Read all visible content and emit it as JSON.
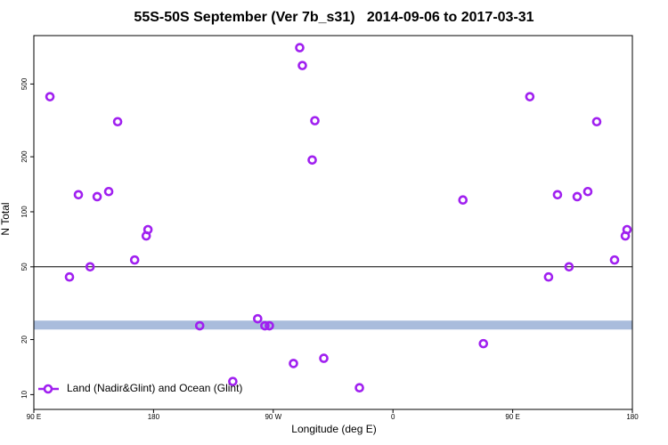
{
  "chart_data": {
    "type": "scatter",
    "title": "55S-50S September (Ver 7b_s31)   2014-09-06 to 2017-03-31",
    "x_label": "Longitude (deg E)",
    "y_label": "N Total",
    "log_y": true,
    "xlim": [
      90,
      540
    ],
    "ylim": [
      8.3,
      920
    ],
    "xticks": [
      {
        "value": 90,
        "label": "90 E"
      },
      180,
      {
        "value": 270,
        "label": "90 W"
      },
      {
        "value": 360,
        "label": "0"
      },
      {
        "value": 450,
        "label": "90 E"
      },
      {
        "value": 540,
        "label": "180"
      }
    ],
    "yticks": [
      10,
      20,
      50,
      100,
      200,
      500
    ],
    "reference_line": 50,
    "shaded_band": {
      "range": [
        22.7,
        25.4
      ],
      "color": "#a9bcdc"
    },
    "legend": "bottom-left",
    "series": [
      {
        "name": "Land (Nadir&Glint) and Ocean (Glint)",
        "color": "#a020f0",
        "x": [
          102.1,
          116.8,
          123.5,
          132.3,
          137.6,
          146.3,
          153.0,
          165.8,
          174.5,
          175.8,
          214.7,
          239.6,
          258.3,
          263.7,
          267.1,
          285.2,
          289.9,
          291.9,
          299.3,
          301.3,
          308.0,
          334.8,
          412.6,
          428.0,
          462.9,
          477.0,
          483.7,
          492.4,
          498.5,
          506.5,
          513.2,
          526.6,
          534.7,
          536.0
        ],
        "values": [
          426,
          44,
          124,
          50,
          121,
          129,
          311,
          54.5,
          73.8,
          79.9,
          23.8,
          11.8,
          26,
          23.8,
          23.8,
          14.8,
          790,
          631,
          192,
          315,
          15.8,
          10.9,
          116,
          19,
          426,
          44,
          124,
          50,
          121,
          129,
          311,
          54.5,
          73.8,
          79.9
        ]
      }
    ]
  }
}
